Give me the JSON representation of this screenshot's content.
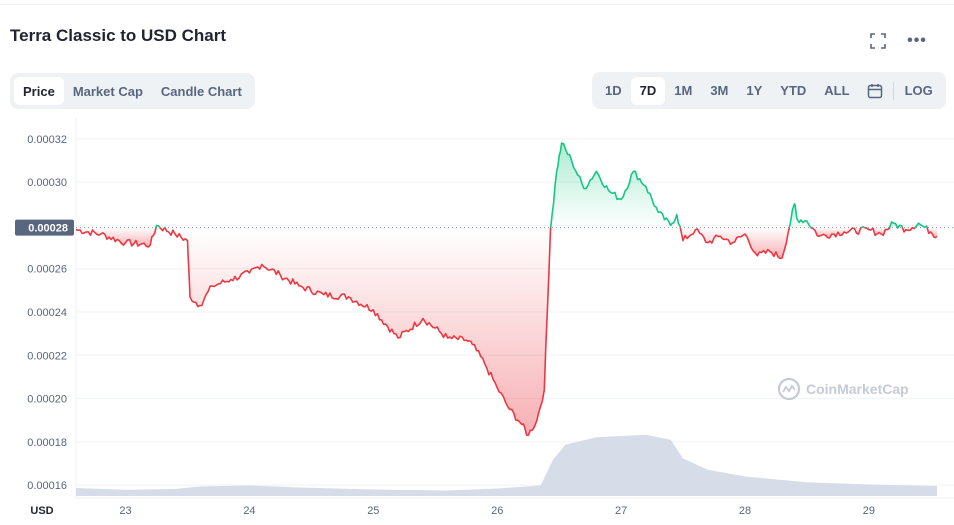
{
  "header": {
    "title": "Terra Classic to USD Chart",
    "fullscreen_icon": "fullscreen-icon",
    "more_icon": "more-icon",
    "more_glyph": "•••"
  },
  "view_tabs": [
    {
      "label": "Price",
      "active": true
    },
    {
      "label": "Market Cap",
      "active": false
    },
    {
      "label": "Candle Chart",
      "active": false
    }
  ],
  "range_tabs": [
    {
      "label": "1D",
      "active": false
    },
    {
      "label": "7D",
      "active": true
    },
    {
      "label": "1M",
      "active": false
    },
    {
      "label": "3M",
      "active": false
    },
    {
      "label": "1Y",
      "active": false
    },
    {
      "label": "YTD",
      "active": false
    },
    {
      "label": "ALL",
      "active": false
    }
  ],
  "calendar_icon": "calendar-icon",
  "log_label": "LOG",
  "watermark": "CoinMarketCap",
  "colors": {
    "up": "#16c784",
    "down": "#ea3943",
    "volume": "#cfd6e4",
    "grid": "#eff2f5",
    "baseline_label_bg": "#58667e"
  },
  "chart_data": {
    "type": "line",
    "ylim": [
      0.000155,
      0.000325
    ],
    "yticks": [
      "0.00032",
      "0.00030",
      "0.00028",
      "0.00026",
      "0.00024",
      "0.00022",
      "0.00020",
      "0.00018",
      "0.00016"
    ],
    "ytick_values": [
      0.00032,
      0.0003,
      0.00028,
      0.00026,
      0.00024,
      0.00022,
      0.0002,
      0.00018,
      0.00016
    ],
    "x_axis_label": "USD",
    "x_range": [
      22.6,
      29.55
    ],
    "xticks": [
      "23",
      "24",
      "25",
      "26",
      "27",
      "28",
      "29"
    ],
    "xtick_values": [
      23,
      24,
      25,
      26,
      27,
      28,
      29
    ],
    "baseline": {
      "value": 0.000279,
      "label": "0.00028"
    },
    "series": [
      {
        "x": [
          22.6,
          22.8,
          23.0,
          23.2,
          23.25,
          23.4,
          23.5,
          23.52,
          23.6,
          23.7,
          23.85,
          24.0,
          24.1,
          24.25,
          24.4,
          24.6,
          24.8,
          25.0,
          25.2,
          25.4,
          25.6,
          25.75,
          25.8,
          25.9,
          26.0,
          26.1,
          26.2,
          26.25,
          26.32,
          26.38,
          26.43,
          26.48,
          26.52,
          26.6,
          26.7,
          26.8,
          26.9,
          27.0,
          27.1,
          27.2,
          27.3,
          27.4,
          27.45,
          27.5,
          27.6,
          27.7,
          27.8,
          27.9,
          28.0,
          28.1,
          28.2,
          28.3,
          28.4,
          28.42,
          28.5,
          28.6,
          28.8,
          29.0,
          29.1,
          29.2,
          29.3,
          29.4,
          29.5,
          29.55
        ],
        "y": [
          0.000278,
          0.000276,
          0.000272,
          0.000271,
          0.00028,
          0.000276,
          0.000273,
          0.000247,
          0.000243,
          0.000252,
          0.000255,
          0.000258,
          0.000262,
          0.000257,
          0.000252,
          0.000248,
          0.000247,
          0.000241,
          0.000228,
          0.000237,
          0.000228,
          0.000227,
          0.000225,
          0.000216,
          0.000205,
          0.000195,
          0.000188,
          0.000183,
          0.00019,
          0.000204,
          0.000278,
          0.000305,
          0.000318,
          0.00031,
          0.000297,
          0.000305,
          0.000296,
          0.000292,
          0.000305,
          0.000298,
          0.000286,
          0.00028,
          0.000285,
          0.000273,
          0.000278,
          0.000272,
          0.000275,
          0.000272,
          0.000276,
          0.000266,
          0.000268,
          0.000265,
          0.00029,
          0.000283,
          0.000282,
          0.000275,
          0.000277,
          0.000278,
          0.000276,
          0.000281,
          0.000278,
          0.000281,
          0.000277,
          0.000275
        ]
      }
    ],
    "volume": {
      "x": [
        22.6,
        23.0,
        23.4,
        23.6,
        24.0,
        24.4,
        25.0,
        25.6,
        26.0,
        26.35,
        26.45,
        26.55,
        26.8,
        27.2,
        27.4,
        27.5,
        27.7,
        28.0,
        28.5,
        29.0,
        29.55
      ],
      "y": [
        0.32,
        0.25,
        0.28,
        0.38,
        0.42,
        0.34,
        0.26,
        0.22,
        0.3,
        0.42,
        1.45,
        2.05,
        2.35,
        2.45,
        2.25,
        1.5,
        1.05,
        0.78,
        0.55,
        0.46,
        0.4
      ]
    }
  }
}
